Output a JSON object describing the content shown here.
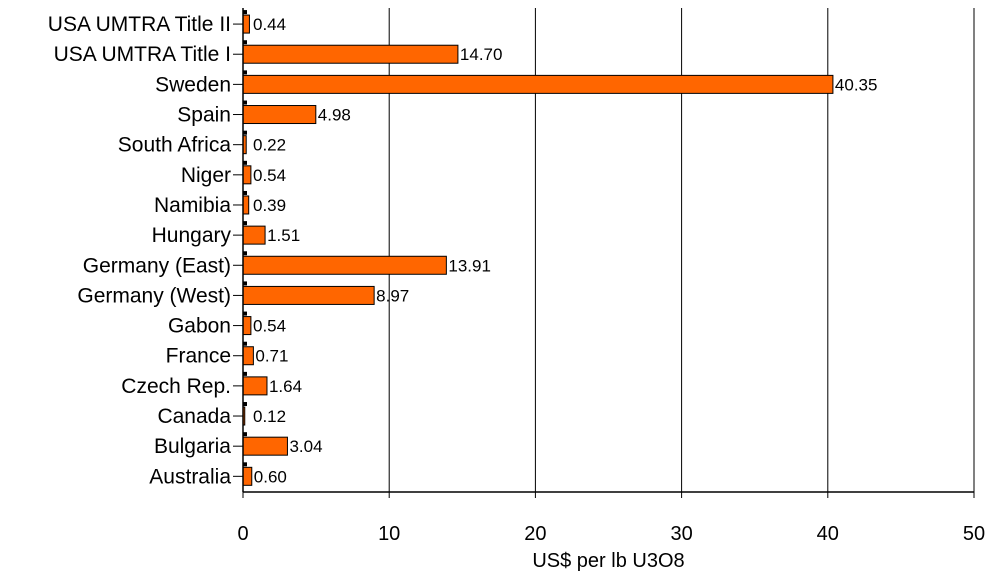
{
  "chart_data": {
    "type": "bar",
    "orientation": "horizontal",
    "categories": [
      "USA UMTRA Title II",
      "USA UMTRA Title I",
      "Sweden",
      "Spain",
      "South Africa",
      "Niger",
      "Namibia",
      "Hungary",
      "Germany (East)",
      "Germany (West)",
      "Gabon",
      "France",
      "Czech Rep.",
      "Canada",
      "Bulgaria",
      "Australia"
    ],
    "values": [
      0.44,
      14.7,
      40.35,
      4.98,
      0.22,
      0.54,
      0.39,
      1.51,
      13.91,
      8.97,
      0.54,
      0.71,
      1.64,
      0.12,
      3.04,
      0.6
    ],
    "value_labels": [
      "0.44",
      "14.70",
      "40.35",
      "4.98",
      "0.22",
      "0.54",
      "0.39",
      "1.51",
      "13.91",
      "8.97",
      "0.54",
      "0.71",
      "1.64",
      "0.12",
      "3.04",
      "0.60"
    ],
    "xlabel": "US$ per lb U3O8",
    "ylabel": "",
    "xlim": [
      0,
      50
    ],
    "xticks": [
      0,
      10,
      20,
      30,
      40,
      50
    ],
    "grid": "vertical",
    "legend": "none",
    "colors": {
      "bar": "#ff6600",
      "bar_edge": "#000000",
      "grid": "#000000"
    }
  }
}
